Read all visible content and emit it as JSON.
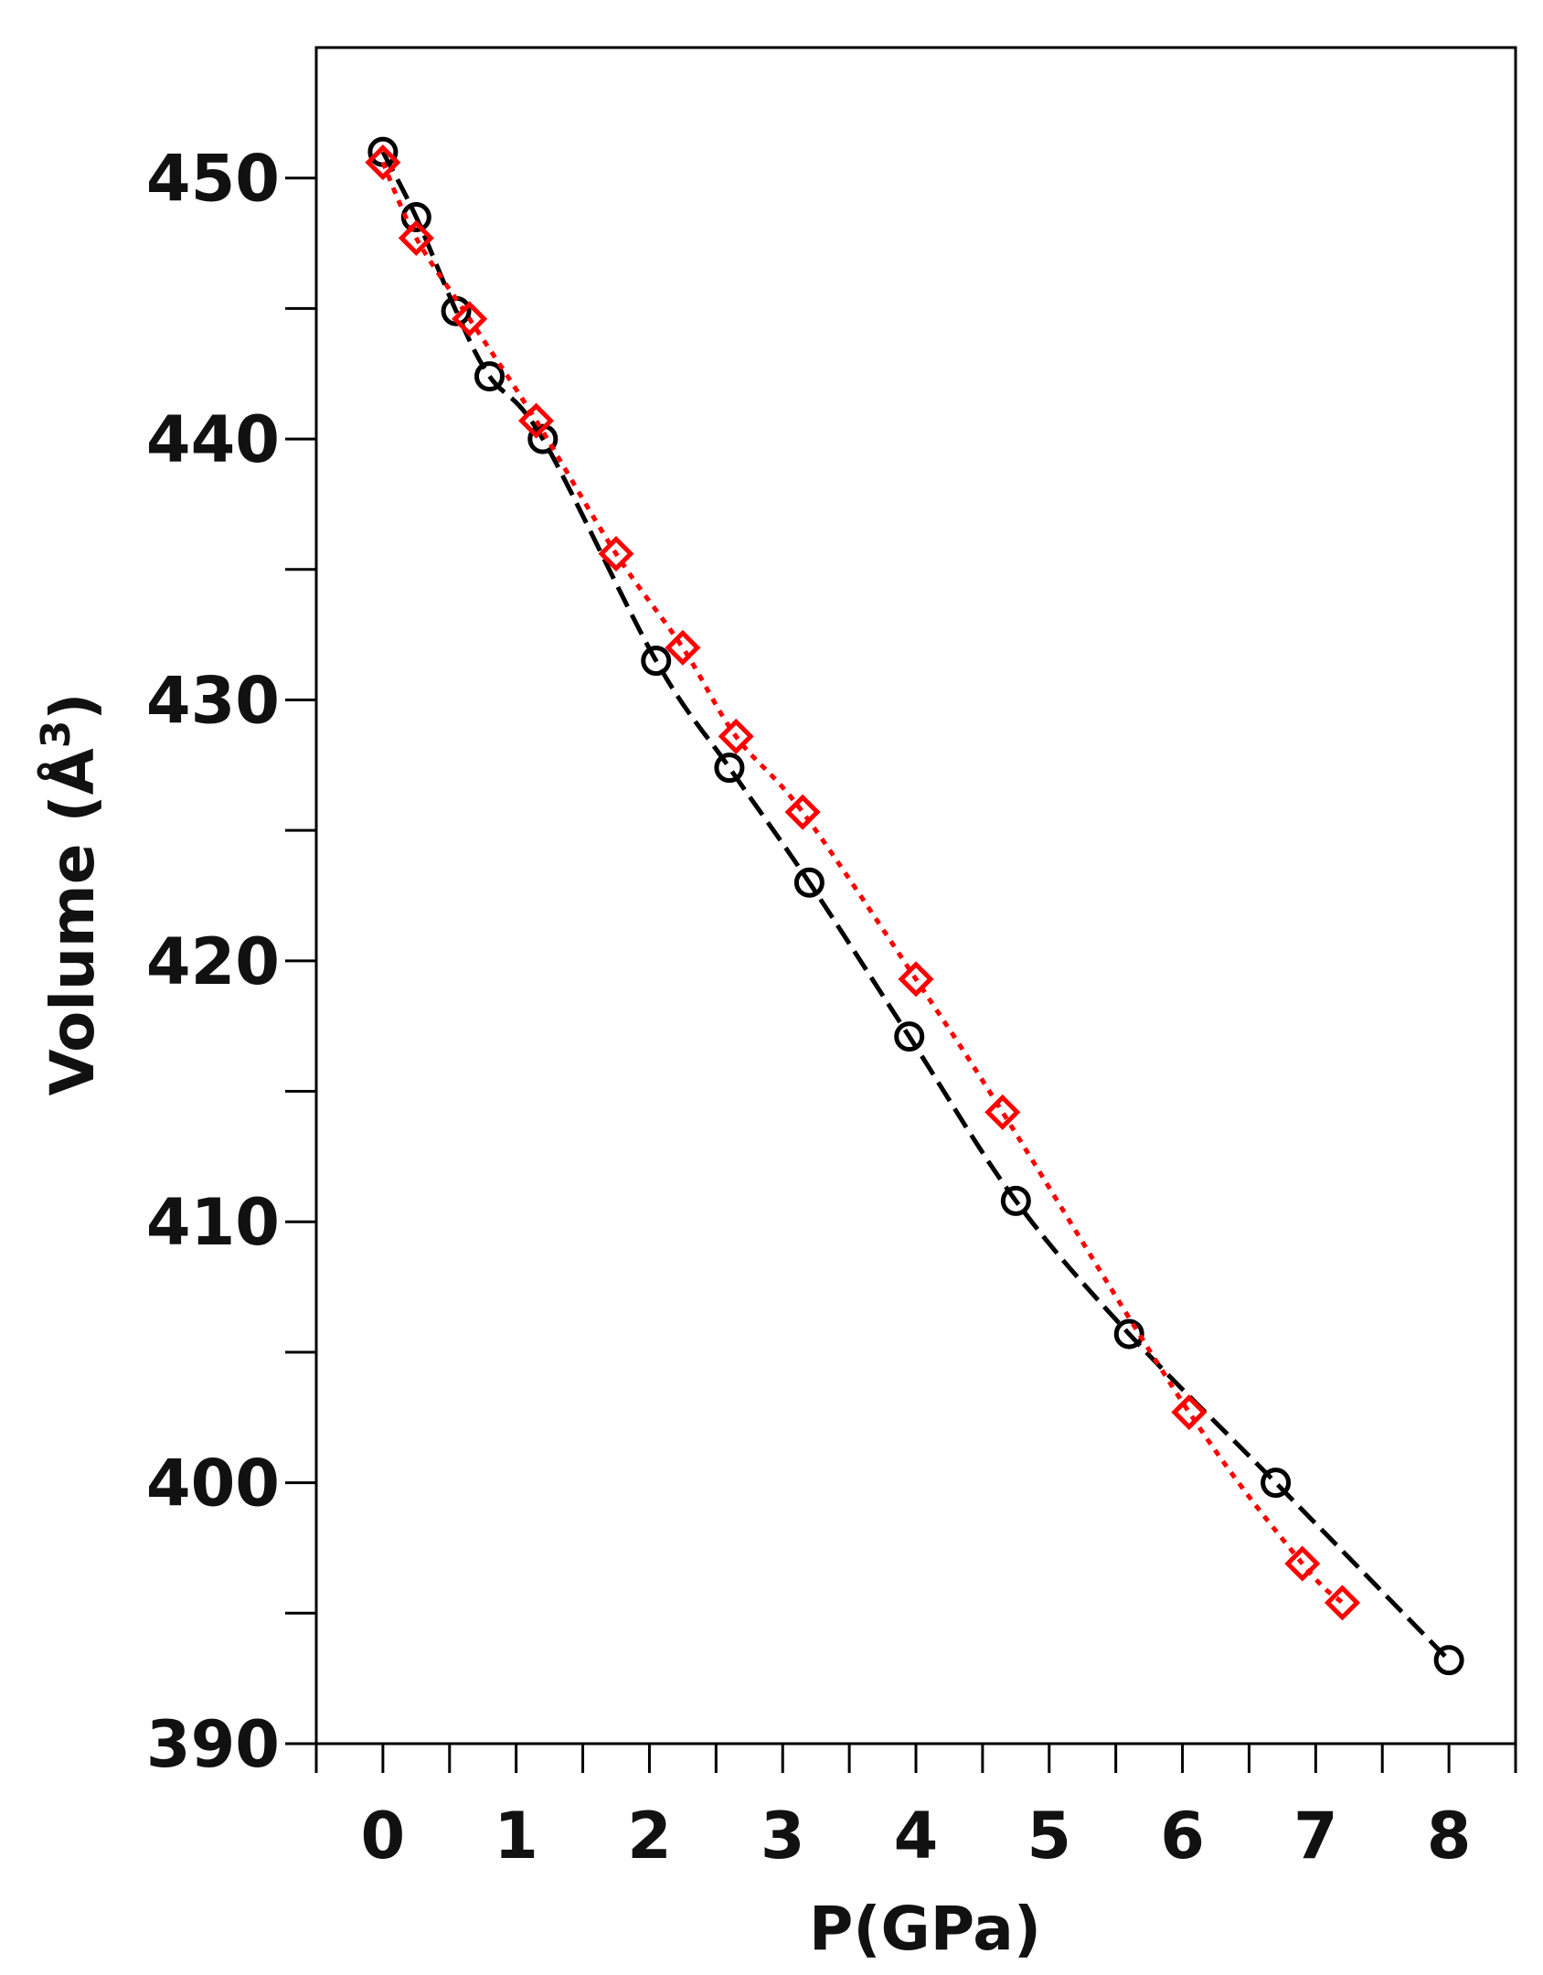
{
  "chart_data": {
    "type": "scatter",
    "xlabel": "P(GPa)",
    "ylabel": "Volume (Å",
    "ylabel_superscript": "3",
    "ylabel_close": ")",
    "xlim": [
      -0.5,
      8.5
    ],
    "ylim": [
      390,
      455
    ],
    "xticks": [
      0,
      1,
      2,
      3,
      4,
      5,
      6,
      7,
      8
    ],
    "yticks": [
      390,
      400,
      410,
      420,
      430,
      440,
      450
    ],
    "grid": false,
    "series": [
      {
        "color": "#000000",
        "marker": "circle",
        "line_style": "dashed",
        "x": [
          0.0,
          0.25,
          0.55,
          0.8,
          1.2,
          2.05,
          2.6,
          3.2,
          3.95,
          4.75,
          5.6,
          6.7,
          8.0
        ],
        "y": [
          451.0,
          448.5,
          444.9,
          442.4,
          440.0,
          431.5,
          427.4,
          423.0,
          417.1,
          410.8,
          405.7,
          400.0,
          393.2
        ]
      },
      {
        "color": "#ff0000",
        "marker": "diamond",
        "line_style": "dotted",
        "x": [
          0.0,
          0.25,
          0.65,
          1.15,
          1.75,
          2.25,
          2.65,
          3.15,
          4.0,
          4.65,
          6.05,
          6.9,
          7.2
        ],
        "y": [
          450.6,
          447.7,
          444.6,
          440.7,
          435.6,
          432.0,
          428.6,
          425.7,
          419.3,
          414.2,
          402.7,
          396.9,
          395.4
        ]
      }
    ]
  }
}
